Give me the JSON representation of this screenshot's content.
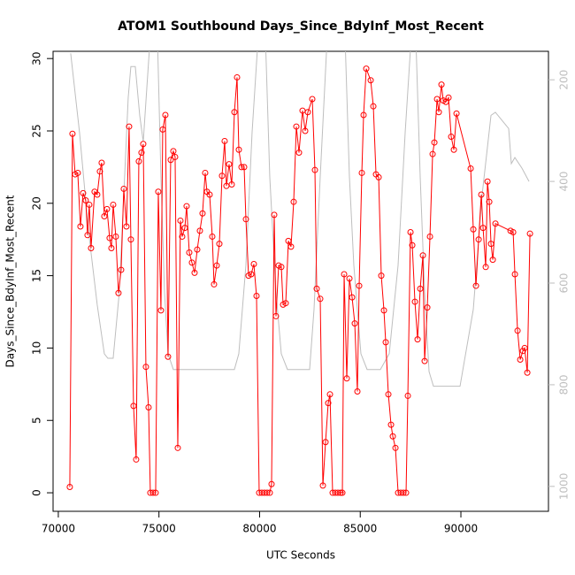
{
  "chart_data": {
    "type": "line",
    "title": "ATOM1 Southbound Days_Since_BdyInf_Most_Recent",
    "xlabel": "UTC Seconds",
    "ylabel": "Days_Since_BdyInf_Most_Recent",
    "xlim": [
      69740,
      94350
    ],
    "xticks": [
      70000,
      75000,
      80000,
      85000,
      90000
    ],
    "ylim": [
      -1.28,
      30.5
    ],
    "yticks": [
      0,
      5,
      10,
      15,
      20,
      25,
      30
    ],
    "y2lim": [
      1049,
      144
    ],
    "y2ticks": [
      200,
      400,
      600,
      800,
      1000
    ],
    "series": [
      {
        "color": "#ff0000",
        "marker": "circle",
        "x": [
          70571,
          70703,
          70835,
          70967,
          71099,
          71231,
          71363,
          71451,
          71539,
          71627,
          71802,
          71934,
          72066,
          72154,
          72286,
          72418,
          72550,
          72638,
          72726,
          72857,
          72989,
          73121,
          73253,
          73385,
          73517,
          73605,
          73737,
          73868,
          74000,
          74132,
          74220,
          74352,
          74484,
          74572,
          74704,
          74836,
          74967,
          75099,
          75187,
          75319,
          75451,
          75583,
          75715,
          75803,
          75935,
          76066,
          76154,
          76286,
          76374,
          76506,
          76638,
          76770,
          76902,
          77034,
          77165,
          77297,
          77385,
          77517,
          77649,
          77737,
          77869,
          78001,
          78133,
          78264,
          78352,
          78484,
          78616,
          78748,
          78880,
          78968,
          79100,
          79232,
          79320,
          79451,
          79583,
          79715,
          79847,
          79979,
          80111,
          80243,
          80375,
          80506,
          80594,
          80726,
          80814,
          80946,
          81078,
          81166,
          81298,
          81430,
          81561,
          81693,
          81825,
          81957,
          82133,
          82265,
          82397,
          82617,
          82748,
          82836,
          83012,
          83144,
          83276,
          83408,
          83496,
          83628,
          83759,
          83891,
          84023,
          84111,
          84199,
          84331,
          84463,
          84595,
          84727,
          84858,
          84946,
          85078,
          85166,
          85298,
          85518,
          85650,
          85782,
          85914,
          86045,
          86177,
          86265,
          86397,
          86529,
          86617,
          86749,
          86881,
          87013,
          87144,
          87276,
          87364,
          87496,
          87584,
          87716,
          87848,
          87980,
          88112,
          88199,
          88331,
          88463,
          88595,
          88683,
          88815,
          88903,
          89035,
          89123,
          89254,
          89386,
          89518,
          89650,
          89782,
          90485,
          90617,
          90749,
          90881,
          91013,
          91101,
          91233,
          91321,
          91409,
          91496,
          91584,
          91716,
          92464,
          92596,
          92683,
          92815,
          92947,
          93079,
          93167,
          93299,
          93431
        ],
        "values": [
          0.4,
          24.8,
          22,
          22.1,
          18.4,
          20.7,
          20.2,
          17.8,
          19.9,
          16.9,
          20.8,
          20.6,
          22.2,
          22.8,
          19.1,
          19.6,
          17.6,
          16.9,
          19.9,
          17.7,
          13.8,
          15.4,
          21,
          18.4,
          25.3,
          17.5,
          6,
          2.3,
          22.9,
          23.5,
          24.1,
          8.7,
          5.9,
          0,
          0,
          0,
          20.8,
          12.6,
          25.1,
          26.1,
          9.4,
          23,
          23.6,
          23.2,
          3.1,
          18.8,
          17.7,
          18.3,
          19.8,
          16.6,
          15.9,
          15.2,
          16.8,
          18.1,
          19.3,
          22.1,
          20.8,
          20.6,
          17.7,
          14.4,
          15.7,
          17.2,
          21.9,
          24.3,
          21.2,
          22.7,
          21.3,
          26.3,
          28.7,
          23.7,
          22.5,
          22.5,
          18.9,
          15,
          15.1,
          15.8,
          13.6,
          0,
          0,
          0,
          0,
          0,
          0.6,
          19.2,
          12.2,
          15.7,
          15.6,
          13,
          13.1,
          17.4,
          17,
          20.1,
          25.3,
          23.5,
          26.4,
          25,
          26.3,
          27.2,
          22.3,
          14.1,
          13.4,
          0.5,
          3.5,
          6.2,
          6.8,
          0,
          0,
          0,
          0,
          0,
          15.1,
          7.9,
          14.8,
          13.5,
          11.7,
          7,
          14.3,
          22.1,
          26.1,
          29.3,
          28.5,
          26.7,
          22,
          21.8,
          15,
          12.6,
          10.4,
          6.8,
          4.7,
          3.9,
          3.1,
          0,
          0,
          0,
          0,
          6.7,
          18,
          17.1,
          13.2,
          10.6,
          14.1,
          16.4,
          9.1,
          12.8,
          17.7,
          23.4,
          24.2,
          27.2,
          26.3,
          28.2,
          27.1,
          27,
          27.3,
          24.6,
          23.7,
          26.2,
          22.4,
          18.2,
          14.3,
          17.5,
          20.6,
          18.3,
          15.6,
          21.5,
          20.1,
          17.2,
          16.1,
          18.6,
          18.1,
          18,
          15.1,
          11.2,
          9.2,
          9.8,
          10,
          8.3,
          17.9
        ]
      },
      {
        "color": "#bebebe",
        "axis": "y2",
        "x": [
          70615,
          71055,
          71495,
          71934,
          72286,
          72462,
          72725,
          73033,
          73253,
          73473,
          73604,
          73824,
          74044,
          74220,
          74396,
          74571,
          74923,
          75099,
          75275,
          75451,
          75714,
          78747,
          78967,
          79319,
          79626,
          79934,
          80286,
          80505,
          80813,
          81077,
          81385,
          82484,
          82703,
          83011,
          83363,
          84242,
          84462,
          84681,
          85033,
          85341,
          86000,
          86440,
          86879,
          87231,
          87538,
          87758,
          87978,
          88198,
          88418,
          88637,
          89956,
          90615,
          91055,
          91495,
          91714,
          92374,
          92505,
          92681,
          93033,
          93385
        ],
        "values": [
          148,
          304,
          496,
          643,
          739,
          748,
          748,
          617,
          426,
          235,
          174,
          174,
          270,
          322,
          217,
          113,
          113,
          391,
          617,
          739,
          770,
          770,
          739,
          565,
          304,
          113,
          113,
          391,
          617,
          739,
          770,
          770,
          652,
          391,
          113,
          113,
          391,
          565,
          739,
          770,
          770,
          739,
          565,
          304,
          113,
          113,
          391,
          617,
          774,
          803,
          803,
          652,
          426,
          270,
          264,
          296,
          365,
          353,
          374,
          400
        ]
      }
    ]
  }
}
